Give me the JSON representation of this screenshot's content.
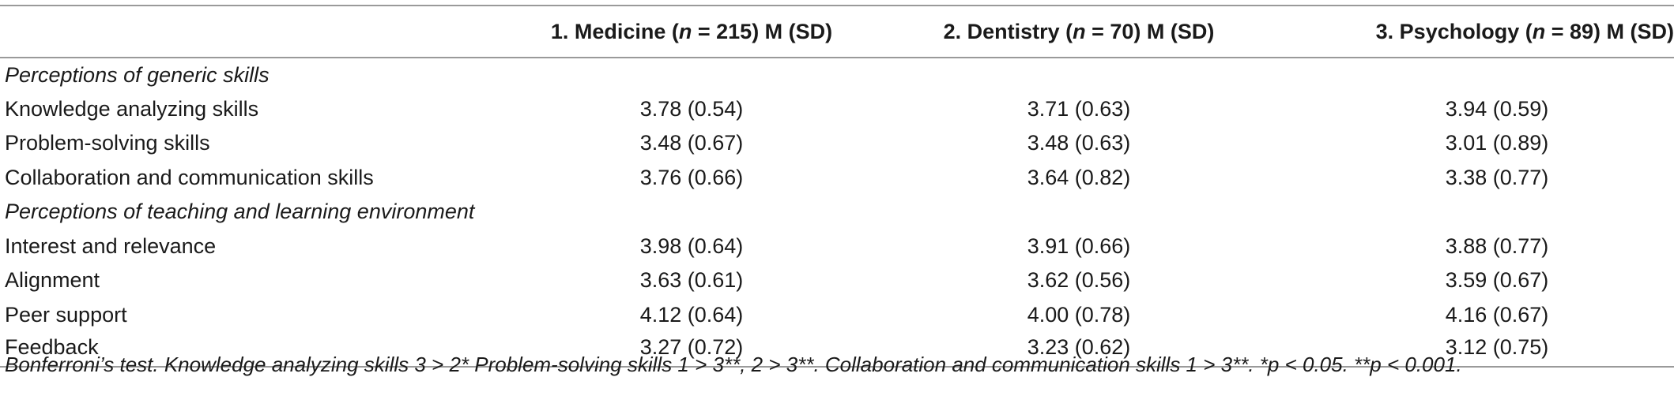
{
  "table": {
    "headers": {
      "col1_pre": "1. Medicine (",
      "col1_n": "n",
      "col1_post": " = 215) M (SD)",
      "col2_pre": "2. Dentistry (",
      "col2_n": "n",
      "col2_post": " = 70) M (SD)",
      "col3_pre": "3. Psychology (",
      "col3_n": "n",
      "col3_post": " = 89) M (SD)"
    },
    "sections": [
      {
        "title": "Perceptions of generic skills",
        "rows": [
          {
            "label": "Knowledge analyzing skills",
            "medicine": "3.78 (0.54)",
            "dentistry": "3.71 (0.63)",
            "psychology": "3.94 (0.59)"
          },
          {
            "label": "Problem-solving skills",
            "medicine": "3.48 (0.67)",
            "dentistry": "3.48 (0.63)",
            "psychology": "3.01 (0.89)"
          },
          {
            "label": "Collaboration and communication skills",
            "medicine": "3.76 (0.66)",
            "dentistry": "3.64 (0.82)",
            "psychology": "3.38 (0.77)"
          }
        ]
      },
      {
        "title": "Perceptions of teaching and learning environment",
        "rows": [
          {
            "label": "Interest and relevance",
            "medicine": "3.98 (0.64)",
            "dentistry": "3.91 (0.66)",
            "psychology": "3.88 (0.77)"
          },
          {
            "label": "Alignment",
            "medicine": "3.63 (0.61)",
            "dentistry": "3.62 (0.56)",
            "psychology": "3.59 (0.67)"
          },
          {
            "label": "Peer support",
            "medicine": "4.12 (0.64)",
            "dentistry": "4.00 (0.78)",
            "psychology": "4.16 (0.67)"
          },
          {
            "label": "Feedback",
            "medicine": "3.27 (0.72)",
            "dentistry": "3.23 (0.62)",
            "psychology": "3.12 (0.75)"
          }
        ]
      }
    ]
  },
  "footnote": "Bonferroni’s test. Knowledge analyzing skills 3 > 2* Problem-solving skills 1 > 3**, 2 > 3**. Collaboration and communication skills 1 > 3**. *p < 0.05. **p < 0.001."
}
